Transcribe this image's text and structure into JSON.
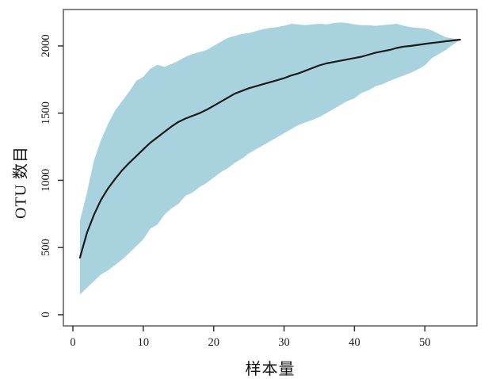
{
  "figure": {
    "x_axis_title": "样本量",
    "y_axis_title": "OTU 数目"
  },
  "chart_data": {
    "type": "area",
    "title": "",
    "xlabel": "样本量",
    "ylabel": "OTU 数目",
    "description": "Species accumulation (rarefaction) curve: mean OTU richness vs number of samples with confidence band",
    "x": [
      1,
      2,
      3,
      4,
      5,
      6,
      7,
      8,
      9,
      10,
      11,
      12,
      13,
      14,
      15,
      16,
      17,
      18,
      19,
      20,
      21,
      22,
      23,
      24,
      25,
      26,
      27,
      28,
      29,
      30,
      31,
      32,
      33,
      34,
      35,
      36,
      37,
      38,
      39,
      40,
      41,
      42,
      43,
      44,
      45,
      46,
      47,
      48,
      49,
      50,
      51,
      52,
      53,
      54,
      55
    ],
    "series": [
      {
        "name": "mean-otu-richness",
        "role": "line",
        "values": [
          425,
          610,
          745,
          855,
          940,
          1010,
          1075,
          1130,
          1180,
          1230,
          1280,
          1320,
          1360,
          1400,
          1435,
          1460,
          1480,
          1500,
          1525,
          1555,
          1585,
          1615,
          1645,
          1665,
          1685,
          1700,
          1715,
          1730,
          1745,
          1760,
          1780,
          1795,
          1815,
          1835,
          1855,
          1870,
          1880,
          1890,
          1900,
          1910,
          1920,
          1935,
          1950,
          1960,
          1970,
          1985,
          1995,
          2000,
          2008,
          2015,
          2022,
          2028,
          2035,
          2041,
          2047
        ]
      },
      {
        "name": "confidence-upper",
        "role": "band-upper",
        "values": [
          700,
          910,
          1150,
          1300,
          1420,
          1520,
          1590,
          1660,
          1740,
          1770,
          1830,
          1860,
          1845,
          1865,
          1890,
          1920,
          1940,
          1955,
          1970,
          2000,
          2030,
          2060,
          2075,
          2090,
          2095,
          2110,
          2125,
          2135,
          2140,
          2150,
          2165,
          2160,
          2155,
          2160,
          2165,
          2160,
          2170,
          2175,
          2170,
          2160,
          2155,
          2155,
          2150,
          2155,
          2160,
          2165,
          2150,
          2140,
          2135,
          2130,
          2115,
          2090,
          2065,
          2055,
          2047
        ]
      },
      {
        "name": "confidence-lower",
        "role": "band-lower",
        "values": [
          150,
          200,
          250,
          300,
          330,
          370,
          410,
          460,
          510,
          560,
          640,
          670,
          745,
          790,
          825,
          885,
          910,
          950,
          980,
          1020,
          1060,
          1090,
          1130,
          1160,
          1200,
          1230,
          1260,
          1290,
          1320,
          1350,
          1380,
          1410,
          1430,
          1450,
          1470,
          1500,
          1530,
          1560,
          1590,
          1610,
          1650,
          1670,
          1700,
          1715,
          1740,
          1760,
          1780,
          1800,
          1825,
          1855,
          1910,
          1940,
          1970,
          2010,
          2047
        ]
      }
    ],
    "x_ticks": [
      0,
      10,
      20,
      30,
      40,
      50
    ],
    "y_ticks": [
      0,
      500,
      1000,
      1500,
      2000
    ],
    "xlim": [
      -1.35,
      57.4
    ],
    "ylim": [
      -83,
      2271
    ],
    "grid": false,
    "legend": "none",
    "band_color": "#a8d3de",
    "line_color": "#1a1a1a",
    "frame_color": "#666666",
    "tick_color": "#333333",
    "tick_label_color": "#1a1a1a"
  }
}
